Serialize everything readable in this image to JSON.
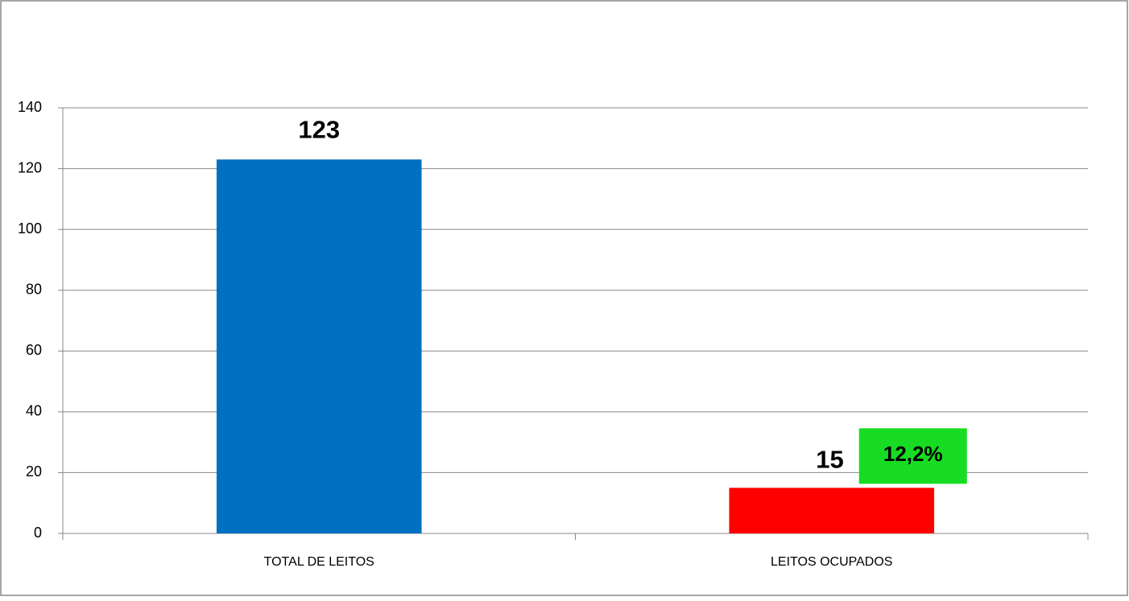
{
  "chart_data": {
    "type": "bar",
    "categories": [
      "TOTAL DE LEITOS",
      "LEITOS OCUPADOS"
    ],
    "values": [
      123,
      15
    ],
    "colors": [
      "#0070c0",
      "#ff0000"
    ],
    "ylim": [
      0,
      140
    ],
    "yticks": [
      0,
      20,
      40,
      60,
      80,
      100,
      120,
      140
    ],
    "grid": true,
    "annotations": [
      {
        "text": "12,2%",
        "color": "#17dc23"
      }
    ]
  }
}
